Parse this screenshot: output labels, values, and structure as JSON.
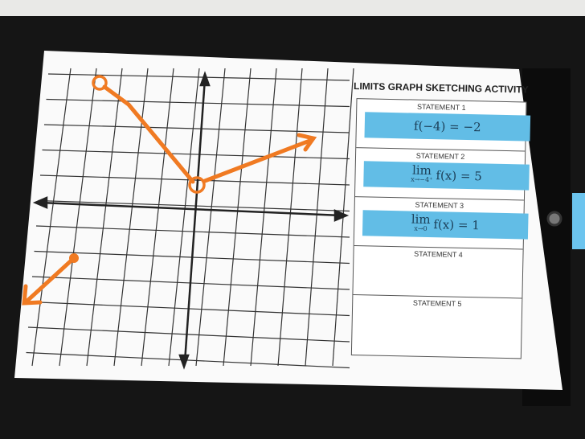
{
  "worksheet": {
    "title": "LIMITS GRAPH SKETCHING ACTIVITY",
    "statements": [
      {
        "label": "STATEMENT 1",
        "expression": "f(−4) = −2"
      },
      {
        "label": "STATEMENT 2",
        "lim": "lim",
        "sub": "x→−4⁺",
        "expression": "f(x) = 5"
      },
      {
        "label": "STATEMENT 3",
        "lim": "lim",
        "sub": "x→0",
        "expression": "f(x) = 1"
      },
      {
        "label": "STATEMENT 4"
      },
      {
        "label": "STATEMENT 5"
      }
    ]
  },
  "colors": {
    "card": "#62bde6",
    "sketch": "#f07a22",
    "clipboard": "#1b1b1b"
  }
}
